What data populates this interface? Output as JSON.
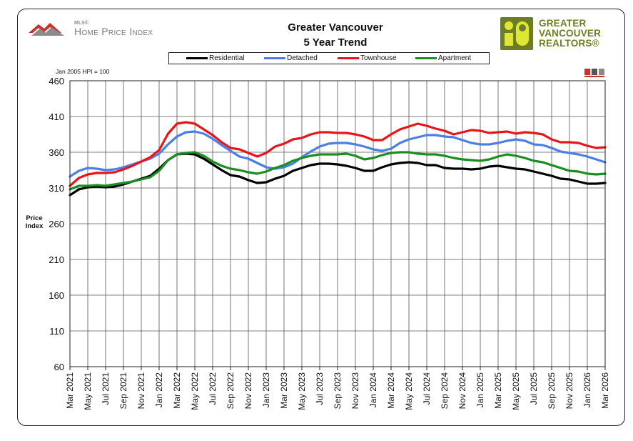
{
  "header": {
    "mls_small": "MLS®",
    "mls_big": "Home Price Index",
    "title_line1": "Greater Vancouver",
    "title_line2": "5 Year Trend",
    "gvr_line1": "GREATER",
    "gvr_line2": "VANCOUVER",
    "gvr_line3": "REALTORS®"
  },
  "note": "Jan 2005 HPI = 100",
  "colors": {
    "Residential": "#000000",
    "Detached": "#4a7fe6",
    "Townhouse": "#e8141a",
    "Apartment": "#1a8f1f"
  },
  "chart_data": {
    "type": "line",
    "title": "Greater Vancouver 5 Year Trend",
    "ylabel": "Price Index",
    "ylim": [
      60,
      460
    ],
    "yticks": [
      60,
      110,
      160,
      210,
      260,
      310,
      360,
      410,
      460
    ],
    "grid": true,
    "legend_position": "top-center",
    "x_tick_labels": [
      "Mar 2021",
      "May 2021",
      "Jul 2021",
      "Sep 2021",
      "Nov 2021",
      "Jan 2022",
      "Mar 2022",
      "May 2022",
      "Jul 2022",
      "Sep 2022",
      "Nov 2022",
      "Jan 2023",
      "Mar 2023",
      "May 2023",
      "Jul 2023",
      "Sep 2023",
      "Nov 2023",
      "Jan 2024",
      "Mar 2024",
      "May 2024",
      "Jul 2024",
      "Sep 2024",
      "Nov 2024",
      "Jan 2025",
      "Mar 2025",
      "May 2025",
      "Jul 2025",
      "Sep 2025",
      "Nov 2025",
      "Jan 2026",
      "Mar 2026"
    ],
    "x": [
      "2021-03",
      "2021-04",
      "2021-05",
      "2021-06",
      "2021-07",
      "2021-08",
      "2021-09",
      "2021-10",
      "2021-11",
      "2021-12",
      "2022-01",
      "2022-02",
      "2022-03",
      "2022-04",
      "2022-05",
      "2022-06",
      "2022-07",
      "2022-08",
      "2022-09",
      "2022-10",
      "2022-11",
      "2022-12",
      "2023-01",
      "2023-02",
      "2023-03",
      "2023-04",
      "2023-05",
      "2023-06",
      "2023-07",
      "2023-08",
      "2023-09",
      "2023-10",
      "2023-11",
      "2023-12",
      "2024-01",
      "2024-02",
      "2024-03",
      "2024-04",
      "2024-05",
      "2024-06",
      "2024-07",
      "2024-08",
      "2024-09",
      "2024-10",
      "2024-11",
      "2024-12",
      "2025-01",
      "2025-02",
      "2025-03",
      "2025-04",
      "2025-05",
      "2025-06",
      "2025-07",
      "2025-08",
      "2025-09",
      "2025-10",
      "2025-11",
      "2025-12",
      "2026-01",
      "2026-02",
      "2026-03"
    ],
    "series": [
      {
        "name": "Residential",
        "values": [
          300,
          308,
          311,
          312,
          311,
          312,
          315,
          319,
          323,
          327,
          337,
          349,
          357,
          358,
          357,
          351,
          343,
          335,
          328,
          326,
          321,
          317,
          318,
          323,
          327,
          334,
          338,
          342,
          344,
          344,
          343,
          341,
          338,
          334,
          334,
          339,
          343,
          345,
          346,
          345,
          342,
          342,
          338,
          337,
          337,
          336,
          337,
          340,
          341,
          339,
          337,
          336,
          333,
          330,
          327,
          323,
          322,
          319,
          316,
          316,
          317
        ]
      },
      {
        "name": "Detached",
        "values": [
          326,
          334,
          338,
          337,
          335,
          336,
          339,
          343,
          347,
          351,
          358,
          371,
          382,
          388,
          389,
          386,
          379,
          370,
          362,
          354,
          351,
          345,
          339,
          337,
          339,
          344,
          353,
          361,
          368,
          372,
          373,
          373,
          371,
          368,
          364,
          362,
          365,
          373,
          378,
          381,
          384,
          384,
          382,
          381,
          377,
          373,
          371,
          371,
          373,
          376,
          378,
          376,
          371,
          370,
          366,
          361,
          359,
          357,
          354,
          350,
          346
        ]
      },
      {
        "name": "Townhouse",
        "values": [
          313,
          324,
          329,
          331,
          331,
          332,
          336,
          341,
          347,
          353,
          363,
          386,
          400,
          402,
          400,
          392,
          384,
          374,
          366,
          364,
          359,
          354,
          359,
          368,
          372,
          378,
          380,
          385,
          388,
          388,
          387,
          387,
          385,
          382,
          377,
          377,
          385,
          392,
          396,
          400,
          397,
          393,
          390,
          385,
          388,
          391,
          390,
          387,
          388,
          389,
          386,
          388,
          387,
          385,
          378,
          374,
          374,
          373,
          369,
          366,
          367
        ]
      },
      {
        "name": "Apartment",
        "values": [
          308,
          313,
          313,
          314,
          313,
          315,
          317,
          319,
          322,
          325,
          334,
          349,
          357,
          359,
          360,
          355,
          347,
          341,
          337,
          335,
          332,
          330,
          333,
          338,
          342,
          348,
          352,
          355,
          357,
          357,
          357,
          358,
          355,
          350,
          352,
          356,
          359,
          360,
          360,
          358,
          357,
          357,
          355,
          352,
          350,
          349,
          348,
          350,
          354,
          357,
          355,
          352,
          348,
          346,
          342,
          338,
          334,
          333,
          330,
          329,
          330
        ]
      }
    ]
  }
}
